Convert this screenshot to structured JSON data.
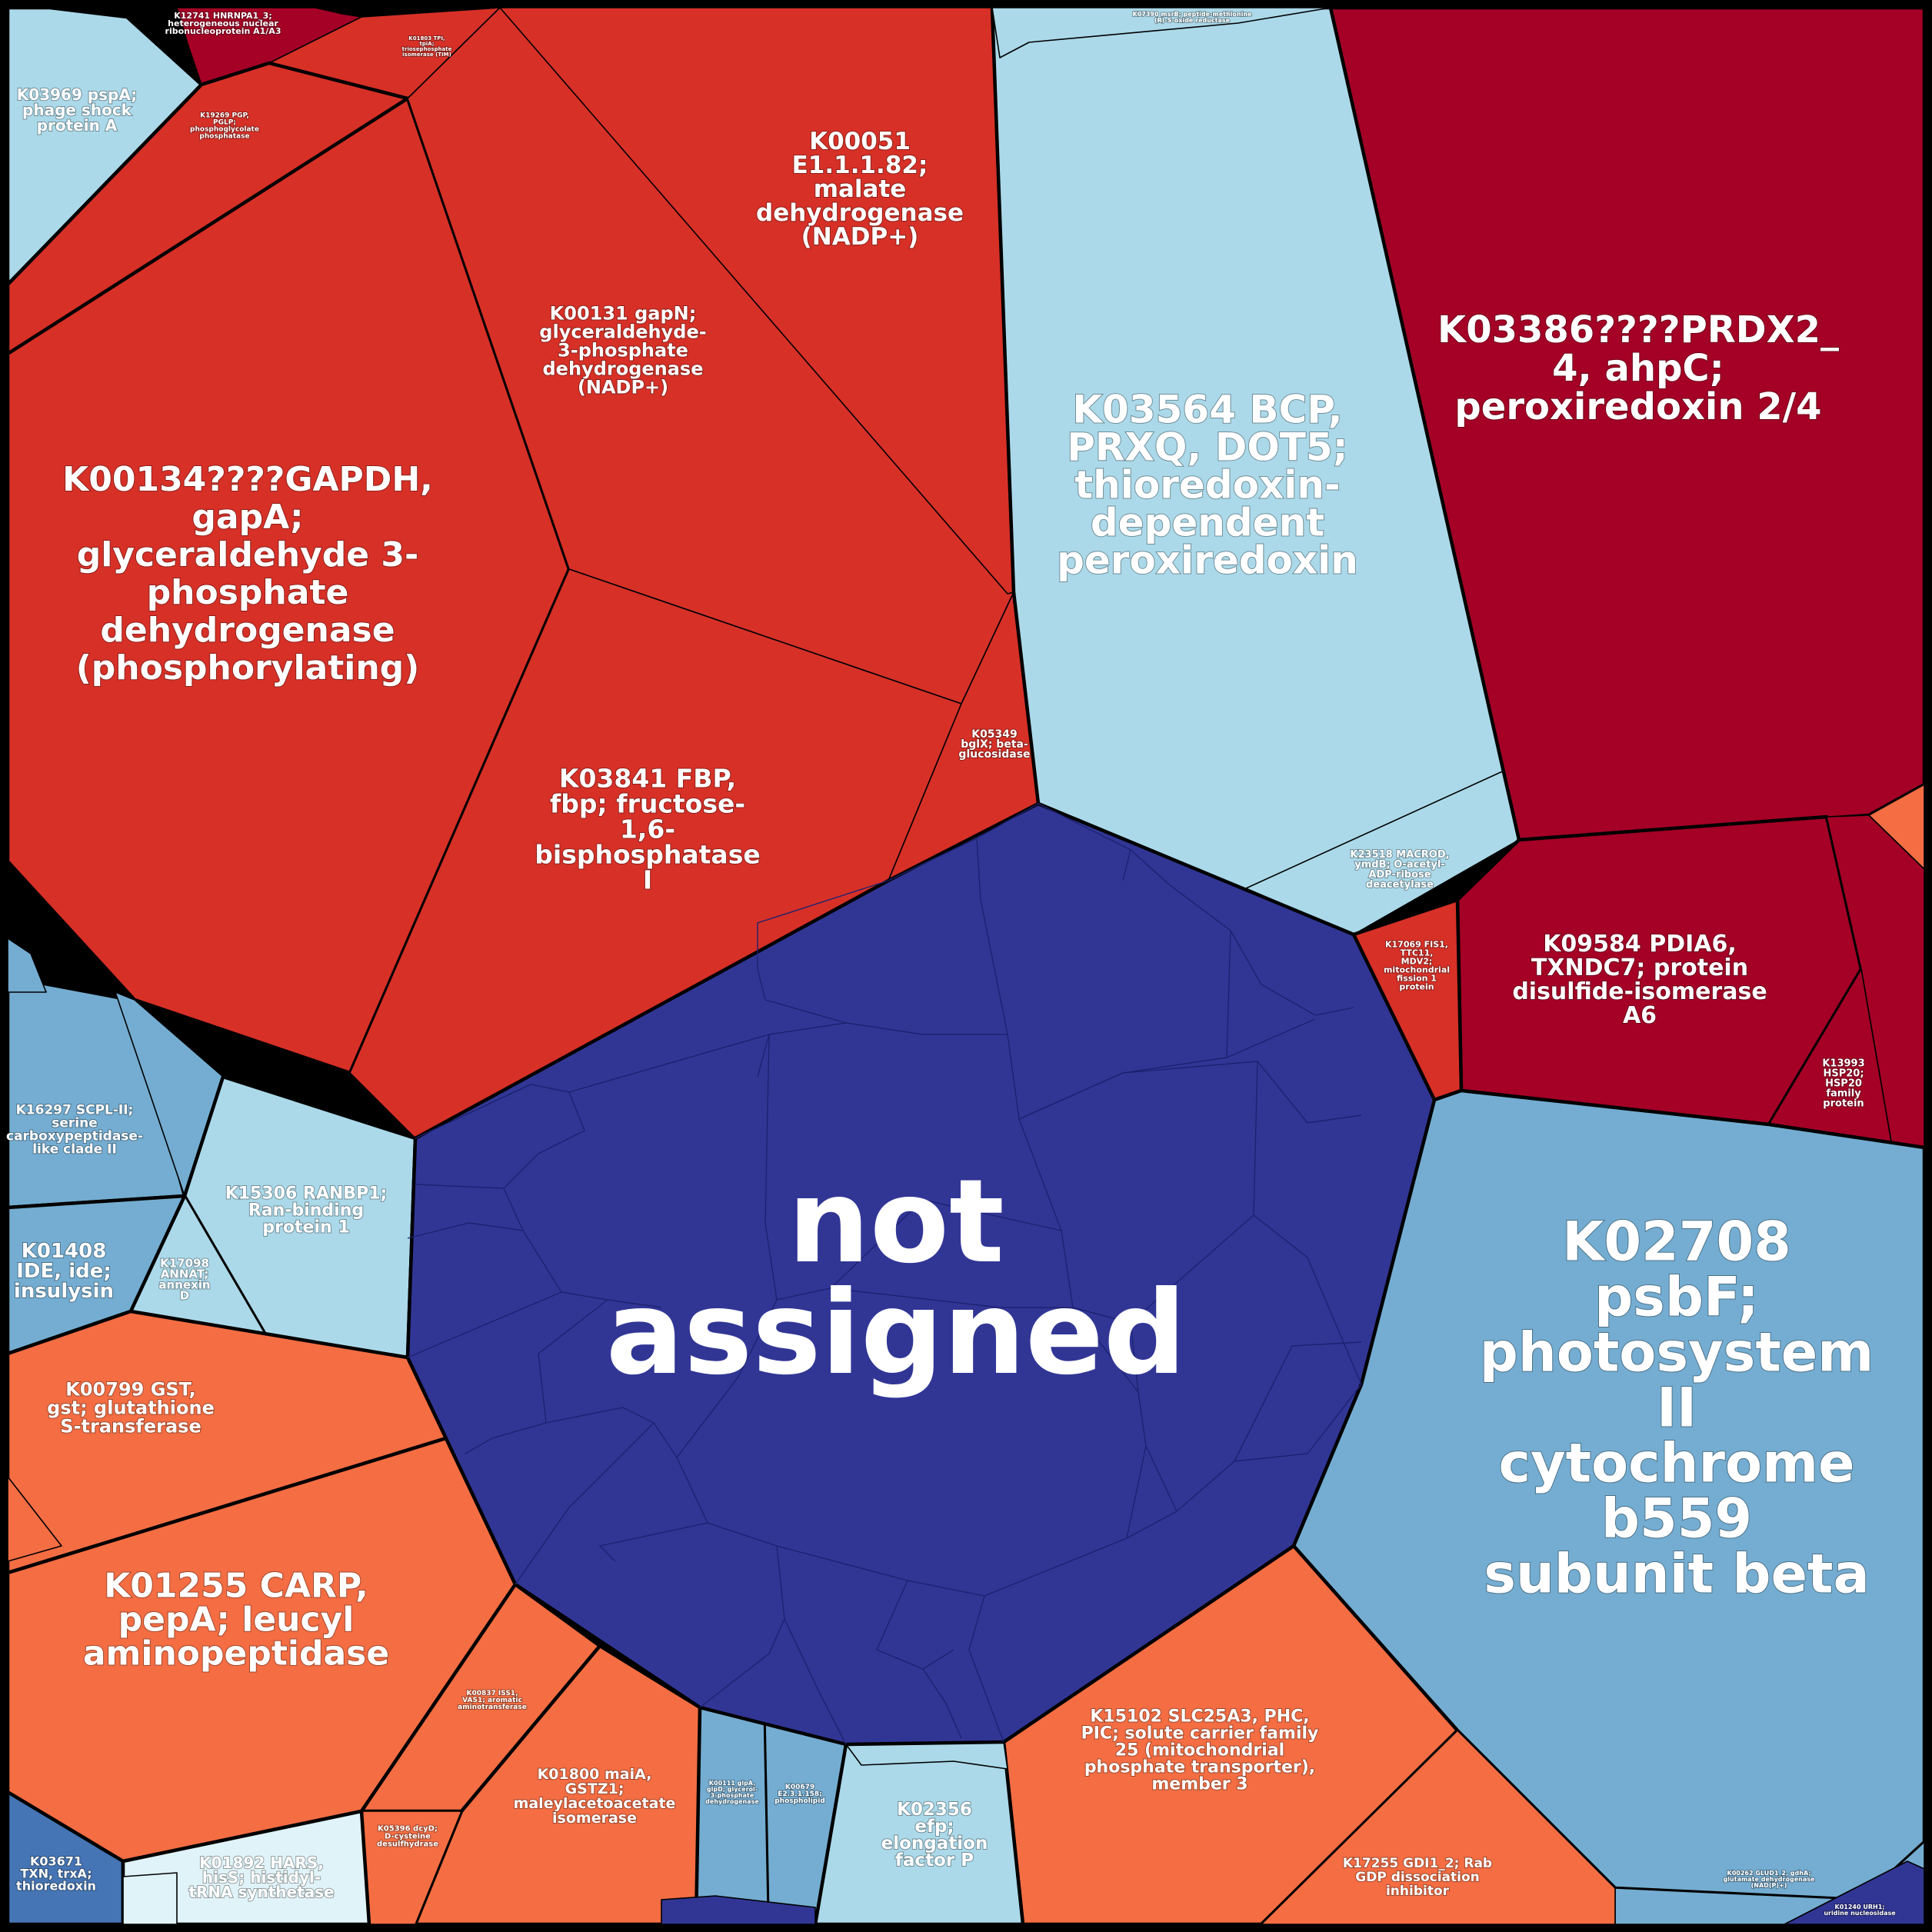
{
  "palette": {
    "dark_red": "#a50026",
    "red": "#d73027",
    "orange": "#f46d43",
    "light_blue": "#abd9e9",
    "blue": "#74add1",
    "mid_blue": "#4575b4",
    "navy": "#313695",
    "pale": "#e0f3f8"
  },
  "cells": [
    {
      "id": "not-assigned",
      "label": "not\nassigned",
      "color": "navy"
    },
    {
      "id": "k00134",
      "label": "K00134????GAPDH,\ngapA;\nglyceraldehyde 3-\nphosphate\ndehydrogenase\n(phosphorylating)",
      "color": "red"
    },
    {
      "id": "k00131",
      "label": "K00131 gapN;\nglyceraldehyde-\n3-phosphate\ndehydrogenase\n(NADP+)",
      "color": "red"
    },
    {
      "id": "k00051",
      "label": "K00051\nE1.1.1.82;\nmalate\ndehydrogenase\n(NADP+)",
      "color": "red"
    },
    {
      "id": "k03841",
      "label": "K03841 FBP,\nfbp; fructose-\n1,6-\nbisphosphatase\nI",
      "color": "red"
    },
    {
      "id": "k05349",
      "label": "K05349\nbglX; beta-\nglucosidase",
      "color": "red"
    },
    {
      "id": "k03564",
      "label": "K03564 BCP,\nPRXQ, DOT5;\nthioredoxin-\ndependent\nperoxiredoxin",
      "color": "light_blue"
    },
    {
      "id": "k23518",
      "label": "K23518 MACROD,\nymdB; O-acetyl-\nADP-ribose\ndeacetylase",
      "color": "light_blue"
    },
    {
      "id": "k03386",
      "label": "K03386????PRDX2_\n4, ahpC;\nperoxiredoxin 2/4",
      "color": "dark_red"
    },
    {
      "id": "k09584",
      "label": "K09584 PDIA6,\nTXNDC7; protein\ndisulfide-isomerase\nA6",
      "color": "dark_red"
    },
    {
      "id": "k13993",
      "label": "K13993\nHSP20;\nHSP20\nfamily\nprotein",
      "color": "dark_red"
    },
    {
      "id": "k17069",
      "label": "K17069 FIS1,\nTTC11,\nMDV2;\nmitochondrial\nfission 1\nprotein",
      "color": "red"
    },
    {
      "id": "k02708",
      "label": "K02708\npsbF;\nphotosystem\nII\ncytochrome\nb559\nsubunit beta",
      "color": "blue"
    },
    {
      "id": "k03969",
      "label": "K03969 pspA;\nphage shock\nprotein A",
      "color": "light_blue"
    },
    {
      "id": "k12741",
      "label": "K12741 HNRNPA1_3;\nheterogeneous nuclear\nribonucleoprotein A1/A3",
      "color": "dark_red"
    },
    {
      "id": "k19269",
      "label": "K19269 PGP,\nPGLP;\nphosphoglycolate\nphosphatase",
      "color": "red"
    },
    {
      "id": "k01803",
      "label": "K01803 TPI,\ntpiA;\ntriosephosphate\nisomerase (TIM)",
      "color": "red"
    },
    {
      "id": "k16297",
      "label": "K16297 SCPL-II;\nserine\ncarboxypeptidase-\nlike clade II",
      "color": "blue"
    },
    {
      "id": "k15306",
      "label": "K15306 RANBP1;\nRan-binding\nprotein 1",
      "color": "light_blue"
    },
    {
      "id": "k17098",
      "label": "K17098\nANNAT;\nannexin\nD",
      "color": "light_blue"
    },
    {
      "id": "k01408",
      "label": "K01408\nIDE, ide;\ninsulysin",
      "color": "blue"
    },
    {
      "id": "k00799",
      "label": "K00799 GST,\ngst; glutathione\nS-transferase",
      "color": "orange"
    },
    {
      "id": "k01255",
      "label": "K01255 CARP,\npepA; leucyl\naminopeptidase",
      "color": "orange"
    },
    {
      "id": "k00837",
      "label": "K00837 ISS1,\nVAS1; aromatic\naminotransferase",
      "color": "orange"
    },
    {
      "id": "k01800",
      "label": "K01800 maiA,\nGSTZ1;\nmaleylacetoacetate\nisomerase",
      "color": "orange"
    },
    {
      "id": "k05396",
      "label": "K05396 dcyD;\nD-cysteine\ndesulfhydrase",
      "color": "orange"
    },
    {
      "id": "k03671",
      "label": "K03671\nTXN, trxA;\nthioredoxin",
      "color": "mid_blue"
    },
    {
      "id": "k01892",
      "label": "K01892 HARS,\nhisS; histidyl-\ntRNA synthetase",
      "color": "pale"
    },
    {
      "id": "k00111",
      "label": "K00111 glpA,\nglpD; glycerol-\n3-phosphate\ndehydrogenase",
      "color": "blue"
    },
    {
      "id": "k00679",
      "label": "K00679\nE2.3.1.158;\nphospholipid",
      "color": "blue"
    },
    {
      "id": "k02356",
      "label": "K02356\nefp;\nelongation\nfactor P",
      "color": "light_blue"
    },
    {
      "id": "k15102",
      "label": "K15102 SLC25A3, PHC,\nPIC; solute carrier family\n25 (mitochondrial\nphosphate transporter),\nmember 3",
      "color": "orange"
    },
    {
      "id": "k17255",
      "label": "K17255 GDI1_2; Rab\nGDP dissociation\ninhibitor",
      "color": "orange"
    },
    {
      "id": "k00262",
      "label": "K00262 GLUD1_2, gdhA;\nglutamate dehydrogenase\n(NAD(P)+)",
      "color": "blue"
    },
    {
      "id": "k01240",
      "label": "K01240 URH1;\nuridine nucleosidase",
      "color": "navy"
    },
    {
      "id": "k07390",
      "label": "K07390 msrB; peptide-methionine\n(R)-S-oxide reductase",
      "color": "light_blue"
    }
  ]
}
